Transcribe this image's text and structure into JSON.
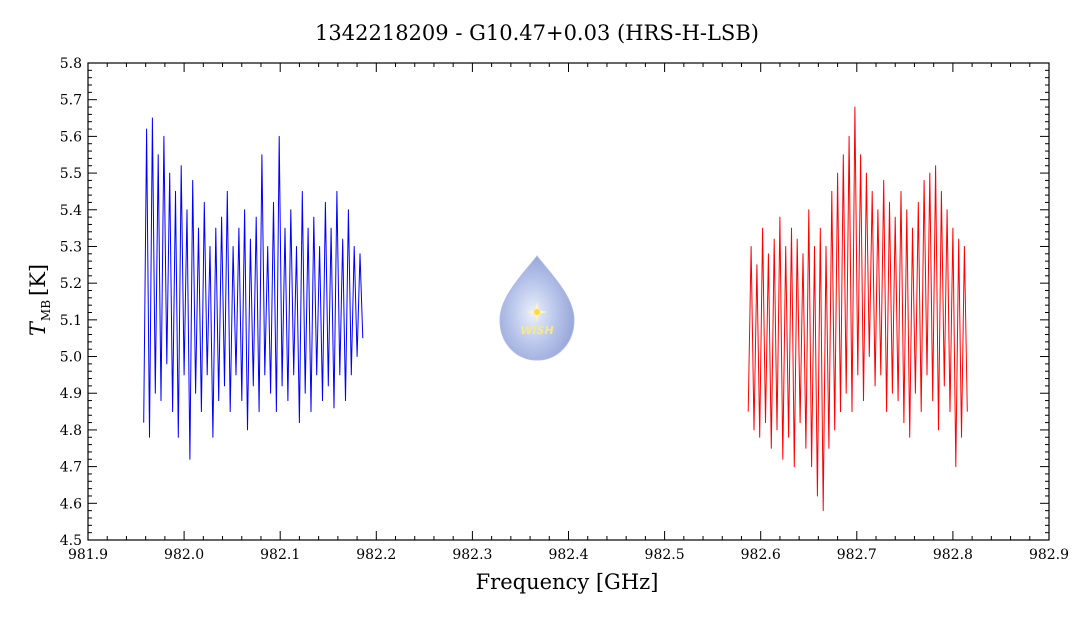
{
  "chart_data": {
    "type": "line",
    "title": "1342218209 - G10.47+0.03 (HRS-H-LSB)",
    "xlabel": "Frequency [GHz]",
    "ylabel_main": "T",
    "ylabel_sub": "MB",
    "ylabel_unit": "[K]",
    "xlim": [
      981.9,
      982.9
    ],
    "ylim": [
      4.5,
      5.8
    ],
    "x_ticks": [
      "981.9",
      "982.0",
      "982.1",
      "982.2",
      "982.3",
      "982.4",
      "982.5",
      "982.6",
      "982.7",
      "982.8",
      "982.9"
    ],
    "y_ticks": [
      "4.5",
      "4.6",
      "4.7",
      "4.8",
      "4.9",
      "5.0",
      "5.1",
      "5.2",
      "5.3",
      "5.4",
      "5.5",
      "5.6",
      "5.7",
      "5.8"
    ],
    "grid": false,
    "series": [
      {
        "color": "#0000ff",
        "x": [
          981.958,
          981.961,
          981.964,
          981.967,
          981.97,
          981.973,
          981.976,
          981.979,
          981.982,
          981.985,
          981.988,
          981.991,
          981.994,
          981.997,
          982.0,
          982.003,
          982.006,
          982.009,
          982.012,
          982.015,
          982.018,
          982.021,
          982.024,
          982.027,
          982.03,
          982.033,
          982.036,
          982.039,
          982.042,
          982.045,
          982.048,
          982.051,
          982.054,
          982.057,
          982.06,
          982.063,
          982.066,
          982.069,
          982.072,
          982.075,
          982.078,
          982.081,
          982.084,
          982.087,
          982.09,
          982.093,
          982.096,
          982.099,
          982.102,
          982.105,
          982.108,
          982.111,
          982.114,
          982.117,
          982.12,
          982.123,
          982.126,
          982.129,
          982.132,
          982.135,
          982.138,
          982.141,
          982.144,
          982.147,
          982.15,
          982.153,
          982.156,
          982.159,
          982.162,
          982.165,
          982.168,
          982.171,
          982.174,
          982.177,
          982.18,
          982.183,
          982.186
        ],
        "y": [
          4.82,
          5.62,
          4.78,
          5.65,
          4.9,
          5.55,
          4.88,
          5.6,
          4.98,
          5.5,
          4.85,
          5.45,
          4.78,
          5.52,
          4.95,
          5.4,
          4.72,
          5.48,
          4.9,
          5.35,
          4.85,
          5.42,
          4.95,
          5.3,
          4.78,
          5.35,
          4.88,
          5.38,
          4.92,
          5.45,
          4.85,
          5.3,
          4.95,
          5.35,
          4.88,
          5.4,
          4.8,
          5.32,
          4.92,
          5.38,
          4.85,
          5.55,
          4.95,
          5.3,
          4.9,
          5.42,
          4.85,
          5.6,
          4.92,
          5.35,
          4.88,
          5.4,
          4.95,
          5.3,
          4.82,
          5.45,
          4.9,
          5.35,
          4.85,
          5.38,
          4.95,
          5.3,
          4.88,
          5.42,
          4.92,
          5.35,
          4.86,
          5.45,
          4.95,
          5.32,
          4.88,
          5.4,
          4.95,
          5.3,
          5.0,
          5.28,
          5.05
        ]
      },
      {
        "color": "#ff0000",
        "x": [
          982.587,
          982.59,
          982.593,
          982.596,
          982.599,
          982.602,
          982.605,
          982.608,
          982.611,
          982.614,
          982.617,
          982.62,
          982.623,
          982.626,
          982.629,
          982.632,
          982.635,
          982.638,
          982.641,
          982.644,
          982.647,
          982.65,
          982.653,
          982.656,
          982.659,
          982.662,
          982.665,
          982.668,
          982.671,
          982.674,
          982.677,
          982.68,
          982.683,
          982.686,
          982.689,
          982.692,
          982.695,
          982.698,
          982.701,
          982.704,
          982.707,
          982.71,
          982.713,
          982.716,
          982.719,
          982.722,
          982.725,
          982.728,
          982.731,
          982.734,
          982.737,
          982.74,
          982.743,
          982.746,
          982.749,
          982.752,
          982.755,
          982.758,
          982.761,
          982.764,
          982.767,
          982.77,
          982.773,
          982.776,
          982.779,
          982.782,
          982.785,
          982.788,
          982.791,
          982.794,
          982.797,
          982.8,
          982.803,
          982.806,
          982.809,
          982.812,
          982.815
        ],
        "y": [
          4.85,
          5.3,
          4.8,
          5.25,
          4.78,
          5.35,
          4.82,
          5.28,
          4.75,
          5.32,
          4.8,
          5.38,
          4.72,
          5.3,
          4.78,
          5.35,
          4.7,
          5.32,
          4.82,
          5.28,
          4.75,
          5.4,
          4.7,
          5.3,
          4.62,
          5.35,
          4.58,
          5.3,
          4.75,
          5.45,
          4.8,
          5.5,
          4.85,
          5.55,
          4.9,
          5.6,
          4.85,
          5.68,
          4.95,
          5.55,
          4.88,
          5.5,
          5.0,
          5.45,
          4.92,
          5.4,
          4.95,
          5.48,
          4.85,
          5.42,
          4.9,
          5.38,
          4.88,
          5.45,
          4.82,
          5.4,
          4.78,
          5.35,
          4.9,
          5.42,
          4.85,
          5.48,
          4.95,
          5.5,
          4.88,
          5.52,
          4.8,
          5.45,
          4.92,
          5.4,
          4.85,
          5.35,
          4.7,
          5.32,
          4.78,
          5.3,
          4.85
        ]
      }
    ]
  },
  "logo": {
    "text": "WISH"
  }
}
